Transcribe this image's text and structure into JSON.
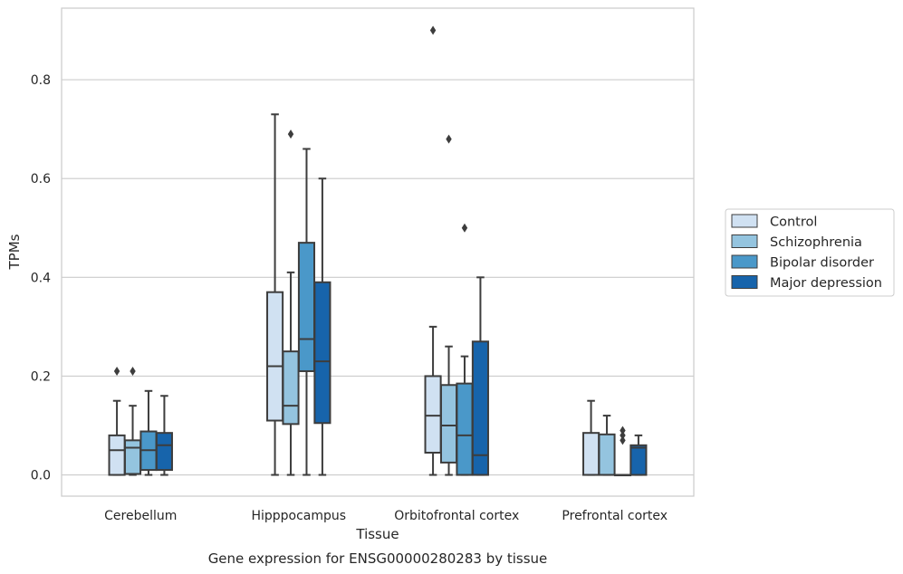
{
  "chart_data": {
    "type": "box",
    "caption": "Gene expression for ENSG00000280283 by tissue",
    "xlabel": "Tissue",
    "ylabel": "TPMs",
    "ylim": [
      -0.043,
      0.945
    ],
    "yticks": [
      0.0,
      0.2,
      0.4,
      0.6,
      0.8
    ],
    "ytick_labels": [
      "0.0",
      "0.2",
      "0.4",
      "0.6",
      "0.8"
    ],
    "grid": "horizontal",
    "legend_position": "right-outside",
    "categories": [
      "Cerebellum",
      "Hipppocampus",
      "Orbitofrontal cortex",
      "Prefrontal cortex"
    ],
    "series": [
      {
        "name": "Control",
        "color": "#d0e1f2",
        "boxes": [
          {
            "whislo": 0.0,
            "q1": 0.0,
            "med": 0.05,
            "q3": 0.08,
            "whishi": 0.15,
            "fliers": [
              0.21
            ]
          },
          {
            "whislo": 0.0,
            "q1": 0.11,
            "med": 0.22,
            "q3": 0.37,
            "whishi": 0.73,
            "fliers": []
          },
          {
            "whislo": 0.0,
            "q1": 0.045,
            "med": 0.12,
            "q3": 0.2,
            "whishi": 0.3,
            "fliers": [
              0.9
            ]
          },
          {
            "whislo": 0.0,
            "q1": 0.0,
            "med": 0.0,
            "q3": 0.085,
            "whishi": 0.15,
            "fliers": []
          }
        ]
      },
      {
        "name": "Schizophrenia",
        "color": "#94c4df",
        "boxes": [
          {
            "whislo": 0.0,
            "q1": 0.002,
            "med": 0.055,
            "q3": 0.07,
            "whishi": 0.14,
            "fliers": [
              0.21
            ]
          },
          {
            "whislo": 0.0,
            "q1": 0.103,
            "med": 0.14,
            "q3": 0.25,
            "whishi": 0.41,
            "fliers": [
              0.69
            ]
          },
          {
            "whislo": 0.0,
            "q1": 0.025,
            "med": 0.1,
            "q3": 0.182,
            "whishi": 0.26,
            "fliers": [
              0.68
            ]
          },
          {
            "whislo": 0.0,
            "q1": 0.0,
            "med": 0.0,
            "q3": 0.082,
            "whishi": 0.12,
            "fliers": []
          }
        ]
      },
      {
        "name": "Bipolar disorder",
        "color": "#4a98c9",
        "boxes": [
          {
            "whislo": 0.0,
            "q1": 0.01,
            "med": 0.05,
            "q3": 0.088,
            "whishi": 0.17,
            "fliers": []
          },
          {
            "whislo": 0.0,
            "q1": 0.21,
            "med": 0.275,
            "q3": 0.47,
            "whishi": 0.66,
            "fliers": []
          },
          {
            "whislo": 0.0,
            "q1": 0.0,
            "med": 0.08,
            "q3": 0.185,
            "whishi": 0.24,
            "fliers": [
              0.5
            ]
          },
          {
            "whislo": 0.0,
            "q1": 0.0,
            "med": 0.0,
            "q3": 0.0,
            "whishi": 0.0,
            "fliers": [
              0.09,
              0.08,
              0.07
            ]
          }
        ]
      },
      {
        "name": "Major depression",
        "color": "#1764ab",
        "boxes": [
          {
            "whislo": 0.0,
            "q1": 0.01,
            "med": 0.06,
            "q3": 0.085,
            "whishi": 0.16,
            "fliers": []
          },
          {
            "whislo": 0.0,
            "q1": 0.105,
            "med": 0.23,
            "q3": 0.39,
            "whishi": 0.6,
            "fliers": []
          },
          {
            "whislo": 0.0,
            "q1": 0.0,
            "med": 0.04,
            "q3": 0.27,
            "whishi": 0.4,
            "fliers": []
          },
          {
            "whislo": 0.0,
            "q1": 0.0,
            "med": 0.055,
            "q3": 0.06,
            "whishi": 0.08,
            "fliers": []
          }
        ]
      }
    ]
  }
}
